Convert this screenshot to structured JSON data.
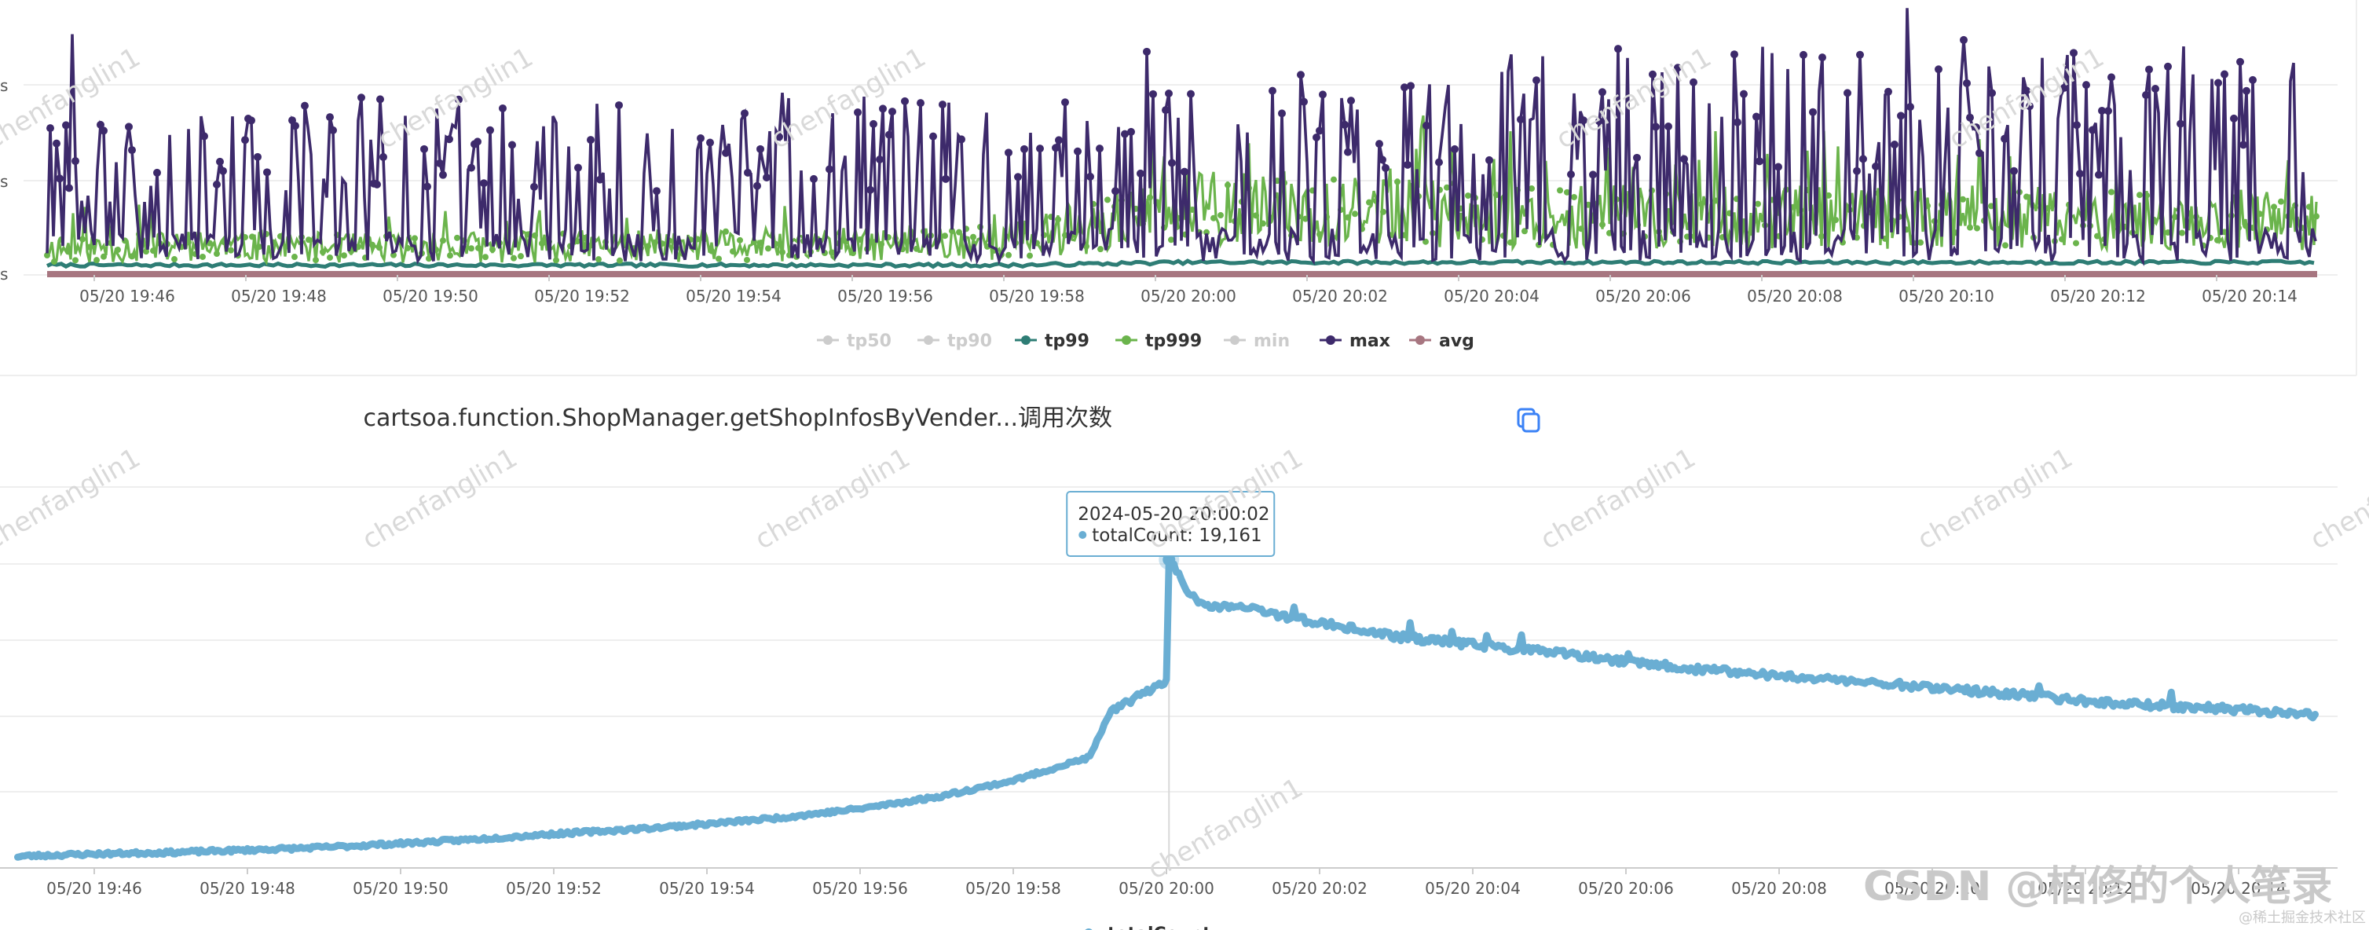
{
  "chart_data": [
    {
      "type": "line",
      "title": "",
      "x": [
        "05/20 19:46",
        "05/20 19:48",
        "05/20 19:50",
        "05/20 19:52",
        "05/20 19:54",
        "05/20 19:56",
        "05/20 19:58",
        "05/20 20:00",
        "05/20 20:02",
        "05/20 20:04",
        "05/20 20:06",
        "05/20 20:08",
        "05/20 20:10",
        "05/20 20:12",
        "05/20 20:14"
      ],
      "y_tick_labels": [
        "s",
        "s",
        "s"
      ],
      "legend": [
        {
          "name": "tp50",
          "color": "#cccccc",
          "active": false
        },
        {
          "name": "tp90",
          "color": "#cccccc",
          "active": false
        },
        {
          "name": "tp99",
          "color": "#2e7d75",
          "active": true
        },
        {
          "name": "tp999",
          "color": "#6bb44c",
          "active": true
        },
        {
          "name": "min",
          "color": "#cccccc",
          "active": false
        },
        {
          "name": "max",
          "color": "#3d2a6b",
          "active": true
        },
        {
          "name": "avg",
          "color": "#a77680",
          "active": true
        }
      ],
      "legend_position": "bottom",
      "grid": true,
      "series": [
        {
          "name": "max",
          "values": [
            0.55,
            0.6,
            0.62,
            0.6,
            0.65,
            0.62,
            0.6,
            0.64,
            0.75,
            0.78,
            0.82,
            0.8,
            0.78,
            0.8,
            0.8
          ]
        },
        {
          "name": "tp999",
          "values": [
            0.12,
            0.13,
            0.12,
            0.13,
            0.13,
            0.14,
            0.16,
            0.3,
            0.3,
            0.27,
            0.26,
            0.26,
            0.26,
            0.25,
            0.25
          ]
        },
        {
          "name": "tp99",
          "values": [
            0.03,
            0.03,
            0.03,
            0.03,
            0.03,
            0.03,
            0.03,
            0.04,
            0.04,
            0.04,
            0.04,
            0.04,
            0.04,
            0.04,
            0.04
          ]
        },
        {
          "name": "avg",
          "values": [
            0.01,
            0.01,
            0.01,
            0.01,
            0.01,
            0.01,
            0.01,
            0.01,
            0.01,
            0.01,
            0.01,
            0.01,
            0.01,
            0.01,
            0.01
          ]
        }
      ]
    },
    {
      "type": "line",
      "title": "cartsoa.function.ShopManager.getShopInfosByVender...调用次数",
      "x": [
        "05/20 19:46",
        "05/20 19:48",
        "05/20 19:50",
        "05/20 19:52",
        "05/20 19:54",
        "05/20 19:56",
        "05/20 19:58",
        "05/20 20:00",
        "05/20 20:02",
        "05/20 20:04",
        "05/20 20:06",
        "05/20 20:08",
        "05/20 20:10",
        "05/20 20:12",
        "05/20 20:14"
      ],
      "legend": [
        {
          "name": "totalCount",
          "color": "#6aaed3"
        }
      ],
      "legend_position": "bottom",
      "grid": true,
      "ylim": [
        3300,
        22900
      ],
      "series": [
        {
          "name": "totalCount",
          "points": [
            [
              "05/20 19:45:00",
              3900
            ],
            [
              "05/20 19:46:00",
              4020
            ],
            [
              "05/20 19:47:00",
              4100
            ],
            [
              "05/20 19:48:00",
              4220
            ],
            [
              "05/20 19:49:00",
              4360
            ],
            [
              "05/20 19:50:00",
              4560
            ],
            [
              "05/20 19:51:00",
              4780
            ],
            [
              "05/20 19:52:00",
              5050
            ],
            [
              "05/20 19:53:00",
              5280
            ],
            [
              "05/20 19:54:00",
              5560
            ],
            [
              "05/20 19:55:00",
              5900
            ],
            [
              "05/20 19:56:00",
              6350
            ],
            [
              "05/20 19:57:00",
              6950
            ],
            [
              "05/20 19:58:00",
              7800
            ],
            [
              "05/20 19:59:00",
              9000
            ],
            [
              "05/20 19:59:15",
              11200
            ],
            [
              "05/20 19:59:45",
              12400
            ],
            [
              "05/20 20:00:00",
              13000
            ],
            [
              "05/20 20:00:02",
              19161
            ],
            [
              "05/20 20:00:25",
              16800
            ],
            [
              "05/20 20:01:00",
              16700
            ],
            [
              "05/20 20:02:00",
              15900
            ],
            [
              "05/20 20:03:00",
              15200
            ],
            [
              "05/20 20:04:00",
              14800
            ],
            [
              "05/20 20:05:00",
              14400
            ],
            [
              "05/20 20:06:00",
              13900
            ],
            [
              "05/20 20:07:00",
              13500
            ],
            [
              "05/20 20:08:00",
              13200
            ],
            [
              "05/20 20:09:00",
              12900
            ],
            [
              "05/20 20:10:00",
              12600
            ],
            [
              "05/20 20:11:00",
              12250
            ],
            [
              "05/20 20:12:00",
              11900
            ],
            [
              "05/20 20:13:00",
              11650
            ],
            [
              "05/20 20:14:00",
              11450
            ],
            [
              "05/20 20:15:00",
              11200
            ]
          ]
        }
      ],
      "tooltip": {
        "time": "2024-05-20 20:00:02",
        "label": "totalCount: 19,161"
      },
      "title_icon": "copy-icon"
    }
  ],
  "watermark": {
    "text": "chenfanglin1"
  },
  "footer": {
    "csdn": "CSDN @柏修的个人笔录",
    "small": "@稀土掘金技术社区"
  }
}
